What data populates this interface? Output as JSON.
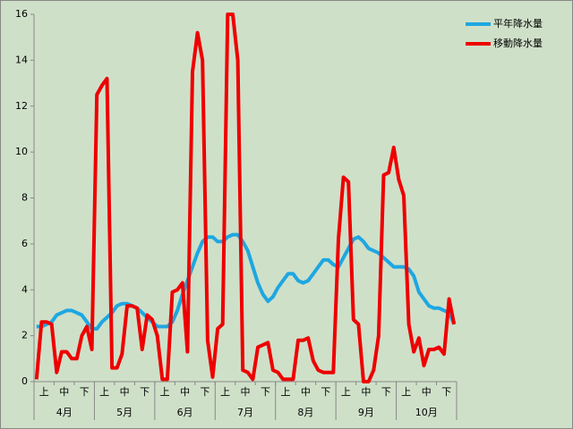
{
  "chart_data": {
    "type": "line",
    "groups": [
      {
        "label": "4月",
        "subcategories": [
          "上",
          "中",
          "下"
        ]
      },
      {
        "label": "5月",
        "subcategories": [
          "上",
          "中",
          "下"
        ]
      },
      {
        "label": "6月",
        "subcategories": [
          "上",
          "中",
          "下"
        ]
      },
      {
        "label": "7月",
        "subcategories": [
          "上",
          "中",
          "下"
        ]
      },
      {
        "label": "8月",
        "subcategories": [
          "上",
          "中",
          "下"
        ]
      },
      {
        "label": "9月",
        "subcategories": [
          "上",
          "中",
          "下"
        ]
      },
      {
        "label": "10月",
        "subcategories": [
          "上",
          "中",
          "下"
        ]
      }
    ],
    "series": [
      {
        "name": "平年降水量",
        "color": "#1ea7e1",
        "values": [
          2.4,
          2.4,
          2.5,
          2.6,
          2.9,
          3.0,
          3.1,
          3.1,
          3.0,
          2.9,
          2.6,
          2.3,
          2.3,
          2.6,
          2.8,
          3.0,
          3.3,
          3.4,
          3.4,
          3.3,
          3.2,
          3.0,
          2.8,
          2.6,
          2.4,
          2.4,
          2.4,
          2.6,
          3.1,
          3.8,
          4.4,
          5.0,
          5.6,
          6.1,
          6.3,
          6.3,
          6.1,
          6.1,
          6.3,
          6.4,
          6.4,
          6.1,
          5.7,
          5.0,
          4.3,
          3.8,
          3.5,
          3.7,
          4.1,
          4.4,
          4.7,
          4.7,
          4.4,
          4.3,
          4.4,
          4.7,
          5.0,
          5.3,
          5.3,
          5.1,
          5.0,
          5.4,
          5.8,
          6.2,
          6.3,
          6.1,
          5.8,
          5.7,
          5.6,
          5.4,
          5.2,
          5.0,
          5.0,
          5.0,
          4.9,
          4.6,
          3.9,
          3.6,
          3.3,
          3.2,
          3.2,
          3.1,
          3.0,
          2.5
        ]
      },
      {
        "name": "移動降水量",
        "color": "#ee0000",
        "values": [
          0.1,
          2.6,
          2.6,
          2.5,
          0.4,
          1.3,
          1.3,
          1.0,
          1.0,
          2.0,
          2.4,
          1.4,
          12.5,
          12.9,
          13.2,
          0.6,
          0.6,
          1.2,
          3.3,
          3.3,
          3.2,
          1.4,
          2.9,
          2.7,
          2.0,
          0.1,
          0.1,
          3.9,
          4.0,
          4.3,
          1.3,
          13.5,
          15.2,
          14.0,
          1.8,
          0.2,
          2.3,
          2.5,
          16.0,
          16.0,
          14.0,
          0.5,
          0.4,
          0.1,
          1.5,
          1.6,
          1.7,
          0.5,
          0.4,
          0.1,
          0.1,
          0.1,
          1.8,
          1.8,
          1.9,
          0.9,
          0.5,
          0.4,
          0.4,
          0.4,
          6.2,
          8.9,
          8.7,
          2.7,
          2.5,
          0.0,
          0.0,
          0.5,
          2.0,
          9.0,
          9.1,
          10.2,
          8.8,
          8.1,
          2.5,
          1.3,
          1.9,
          0.7,
          1.4,
          1.4,
          1.5,
          1.2,
          3.6,
          2.5
        ]
      }
    ],
    "ylim": [
      0,
      16
    ],
    "yticks": [
      0,
      2,
      4,
      6,
      8,
      10,
      12,
      14,
      16
    ],
    "legend": "top-right"
  }
}
